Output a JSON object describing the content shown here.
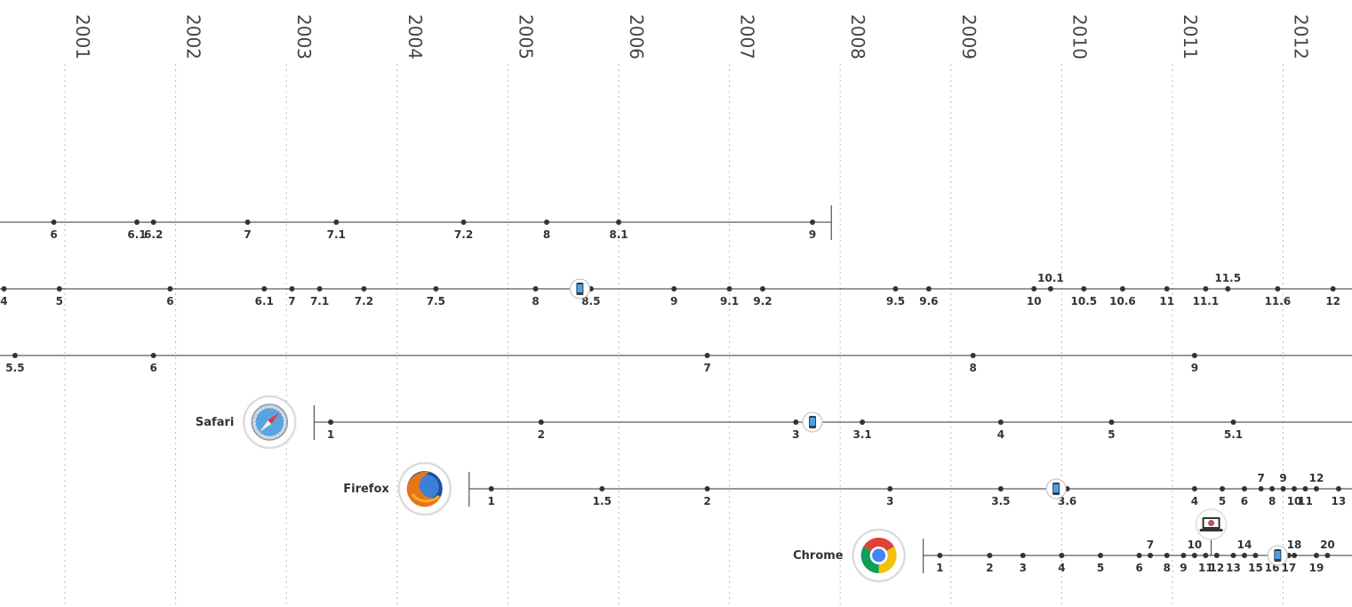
{
  "chart_data": {
    "type": "timeline",
    "x_axis": {
      "unit": "year",
      "labels": [
        "2001",
        "2002",
        "2003",
        "2004",
        "2005",
        "2006",
        "2007",
        "2008",
        "2009",
        "2010",
        "2011",
        "2012"
      ]
    },
    "series": [
      {
        "name": "",
        "icon": "",
        "releases": [
          {
            "label": "6",
            "t": 2000.9
          },
          {
            "label": "6.1",
            "t": 2001.65
          },
          {
            "label": "6.2",
            "t": 2001.8
          },
          {
            "label": "7",
            "t": 2002.65
          },
          {
            "label": "7.1",
            "t": 2003.45
          },
          {
            "label": "7.2",
            "t": 2004.6
          },
          {
            "label": "8",
            "t": 2005.35
          },
          {
            "label": "8.1",
            "t": 2006.0
          },
          {
            "label": "9",
            "t": 2007.75
          }
        ],
        "end": 2007.92,
        "mobile_at": []
      },
      {
        "name": "",
        "icon": "",
        "releases": [
          {
            "label": "4",
            "t": 2000.45
          },
          {
            "label": "5",
            "t": 2000.95
          },
          {
            "label": "6",
            "t": 2001.95
          },
          {
            "label": "6.1",
            "t": 2002.8
          },
          {
            "label": "7",
            "t": 2003.05
          },
          {
            "label": "7.1",
            "t": 2003.3
          },
          {
            "label": "7.2",
            "t": 2003.7
          },
          {
            "label": "7.5",
            "t": 2004.35
          },
          {
            "label": "8",
            "t": 2005.25
          },
          {
            "label": "8.5",
            "t": 2005.75
          },
          {
            "label": "9",
            "t": 2006.5
          },
          {
            "label": "9.1",
            "t": 2007.0
          },
          {
            "label": "9.2",
            "t": 2007.3
          },
          {
            "label": "9.5",
            "t": 2008.5
          },
          {
            "label": "9.6",
            "t": 2008.8
          },
          {
            "label": "10",
            "t": 2009.75
          },
          {
            "label": "10.1",
            "t": 2009.9,
            "above": true
          },
          {
            "label": "10.5",
            "t": 2010.2
          },
          {
            "label": "10.6",
            "t": 2010.55
          },
          {
            "label": "11",
            "t": 2010.95
          },
          {
            "label": "11.1",
            "t": 2011.3
          },
          {
            "label": "11.5",
            "t": 2011.5,
            "above": true
          },
          {
            "label": "11.6",
            "t": 2011.95
          },
          {
            "label": "12",
            "t": 2012.45
          }
        ],
        "mobile_at": [
          2005.65
        ]
      },
      {
        "name": "",
        "icon": "",
        "releases": [
          {
            "label": "5.5",
            "t": 2000.55
          },
          {
            "label": "6",
            "t": 2001.8
          },
          {
            "label": "7",
            "t": 2006.8
          },
          {
            "label": "8",
            "t": 2009.2
          },
          {
            "label": "9",
            "t": 2011.2
          }
        ],
        "mobile_at": []
      },
      {
        "name": "Safari",
        "icon": "safari-icon",
        "releases": [
          {
            "label": "1",
            "t": 2003.4
          },
          {
            "label": "2",
            "t": 2005.3
          },
          {
            "label": "3",
            "t": 2007.6
          },
          {
            "label": "3.1",
            "t": 2008.2
          },
          {
            "label": "4",
            "t": 2009.45
          },
          {
            "label": "5",
            "t": 2010.45
          },
          {
            "label": "5.1",
            "t": 2011.55
          }
        ],
        "start": 2003.25,
        "mobile_at": [
          2007.75
        ]
      },
      {
        "name": "Firefox",
        "icon": "firefox-icon",
        "releases": [
          {
            "label": "1",
            "t": 2004.85
          },
          {
            "label": "1.5",
            "t": 2005.85
          },
          {
            "label": "2",
            "t": 2006.8
          },
          {
            "label": "3",
            "t": 2008.45
          },
          {
            "label": "3.5",
            "t": 2009.45
          },
          {
            "label": "3.6",
            "t": 2010.05
          },
          {
            "label": "4",
            "t": 2011.2
          },
          {
            "label": "5",
            "t": 2011.45
          },
          {
            "label": "6",
            "t": 2011.65
          },
          {
            "label": "7",
            "t": 2011.8,
            "above": true
          },
          {
            "label": "8",
            "t": 2011.9
          },
          {
            "label": "9",
            "t": 2012.0,
            "above": true
          },
          {
            "label": "10",
            "t": 2012.1
          },
          {
            "label": "11",
            "t": 2012.2
          },
          {
            "label": "12",
            "t": 2012.3,
            "above": true
          },
          {
            "label": "13",
            "t": 2012.5
          }
        ],
        "start": 2004.65,
        "mobile_at": [
          2009.95
        ]
      },
      {
        "name": "Chrome",
        "icon": "chrome-icon",
        "releases": [
          {
            "label": "1",
            "t": 2008.9
          },
          {
            "label": "2",
            "t": 2009.35
          },
          {
            "label": "3",
            "t": 2009.65
          },
          {
            "label": "4",
            "t": 2010.0
          },
          {
            "label": "5",
            "t": 2010.35
          },
          {
            "label": "6",
            "t": 2010.7
          },
          {
            "label": "7",
            "t": 2010.8,
            "above": true
          },
          {
            "label": "8",
            "t": 2010.95
          },
          {
            "label": "9",
            "t": 2011.1
          },
          {
            "label": "10",
            "t": 2011.2,
            "above": true
          },
          {
            "label": "11",
            "t": 2011.3
          },
          {
            "label": "12",
            "t": 2011.4
          },
          {
            "label": "13",
            "t": 2011.55
          },
          {
            "label": "14",
            "t": 2011.65,
            "above": true
          },
          {
            "label": "15",
            "t": 2011.75
          },
          {
            "label": "16",
            "t": 2011.9
          },
          {
            "label": "17",
            "t": 2012.05
          },
          {
            "label": "18",
            "t": 2012.1,
            "above": true
          },
          {
            "label": "19",
            "t": 2012.3
          },
          {
            "label": "20",
            "t": 2012.4,
            "above": true
          }
        ],
        "start": 2008.75,
        "mobile_at": [
          2011.95
        ],
        "laptop_at": [
          2011.35
        ]
      }
    ]
  }
}
